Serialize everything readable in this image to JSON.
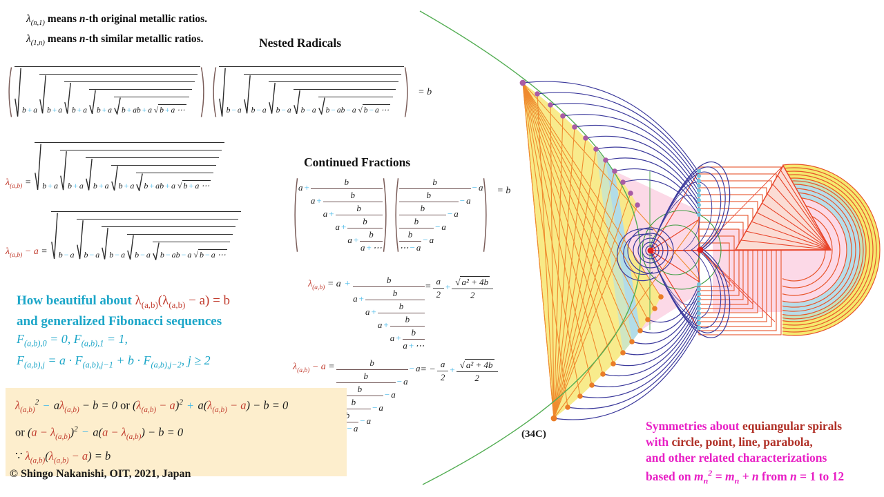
{
  "headings": {
    "nested_radicals": "Nested Radicals",
    "continued_fractions": "Continued Fractions"
  },
  "tokens": {
    "a": "a",
    "b": "b",
    "plus": "+",
    "minus": "−",
    "cdots": "⋯",
    "sqrt": "√",
    "two": "2",
    "sqrt_arg": "a² + 4b"
  },
  "colors": {
    "cyan_text": "#1ca6c8",
    "sign_blue": "#45b8e8",
    "lambda_red": "#c13b2d",
    "magenta": "#e81fc5",
    "dark_red": "#b03027",
    "box_bg": "#fdeecd",
    "green": "#54ae54",
    "indigo": "#3c3a9c",
    "orange": "#ef8a2e",
    "red": "#e8442a",
    "yellow": "#f8ea86"
  },
  "rich": {
    "note1": [
      {
        "t": "λ",
        "c": "ki"
      },
      {
        "t": "(n,1)",
        "c": "ki",
        "sub": true
      },
      {
        "t": " means ",
        "c": "kb"
      },
      {
        "t": "n",
        "c": "kbi"
      },
      {
        "t": "-th original metallic ratios.",
        "c": "kb"
      }
    ],
    "note2": [
      {
        "t": "λ",
        "c": "ki"
      },
      {
        "t": "(1,n)",
        "c": "ki",
        "sub": true
      },
      {
        "t": " means ",
        "c": "kb"
      },
      {
        "t": "n",
        "c": "kbi"
      },
      {
        "t": "-th similar metallic ratios.",
        "c": "kb"
      }
    ],
    "eq1_rhs": [
      {
        "t": "= ",
        "c": "k"
      },
      {
        "t": "b",
        "c": "ki"
      }
    ],
    "eq2_label": [
      {
        "t": "λ",
        "c": "r"
      },
      {
        "t": "(a,b)",
        "c": "r",
        "sub": true
      },
      {
        "t": " = ",
        "c": "k"
      }
    ],
    "eq3_label": [
      {
        "t": "λ",
        "c": "r"
      },
      {
        "t": "(a,b)",
        "c": "r",
        "sub": true
      },
      {
        "t": " − a ",
        "c": "r"
      },
      {
        "t": "= ",
        "c": "k"
      }
    ],
    "eq5_label": [
      {
        "t": "λ",
        "c": "r"
      },
      {
        "t": "(a,b)",
        "c": "r",
        "sub": true
      },
      {
        "t": " = ",
        "c": "k"
      },
      {
        "t": "a ",
        "c": "ki"
      },
      {
        "t": "+",
        "c": "c"
      }
    ],
    "eq5_eq": [
      {
        "t": "=  ",
        "c": "k"
      }
    ],
    "eq6_label": [
      {
        "t": "λ",
        "c": "r"
      },
      {
        "t": "(a,b)",
        "c": "r",
        "sub": true
      },
      {
        "t": " − a ",
        "c": "r"
      },
      {
        "t": "= ",
        "c": "k"
      }
    ],
    "eq6_eq": [
      {
        "t": "= −",
        "c": "k"
      }
    ],
    "cy1": [
      {
        "t": "How beautiful about ",
        "c": "ct"
      },
      {
        "t": "λ",
        "c": "r"
      },
      {
        "t": "(a,b)",
        "c": "r",
        "sub": true
      },
      {
        "t": "(",
        "c": "r"
      },
      {
        "t": "λ",
        "c": "r"
      },
      {
        "t": "(a,b)",
        "c": "r",
        "sub": true
      },
      {
        "t": " − a",
        "c": "r"
      },
      {
        "t": ") = b",
        "c": "r"
      }
    ],
    "cy2": [
      {
        "t": "and generalized Fibonacci sequences",
        "c": "ct"
      }
    ],
    "cy3": [
      {
        "t": "F",
        "c": "ci"
      },
      {
        "t": "(a,b),0",
        "c": "ci",
        "sub": true
      },
      {
        "t": " = 0,",
        "c": "ci"
      },
      {
        "t": "        ",
        "c": "ci"
      },
      {
        "t": "F",
        "c": "ci"
      },
      {
        "t": "(a,b),1",
        "c": "ci",
        "sub": true
      },
      {
        "t": " = 1,",
        "c": "ci"
      }
    ],
    "cy4": [
      {
        "t": "F",
        "c": "ci"
      },
      {
        "t": "(a,b),j",
        "c": "ci",
        "sub": true
      },
      {
        "t": " = a · F",
        "c": "ci"
      },
      {
        "t": "(a,b),j−1",
        "c": "ci",
        "sub": true
      },
      {
        "t": " + b · F",
        "c": "ci"
      },
      {
        "t": "(a,b),j−2",
        "c": "ci",
        "sub": true
      },
      {
        "t": ",       j ≥ 2",
        "c": "ci"
      }
    ],
    "box1": [
      {
        "t": "λ",
        "c": "r"
      },
      {
        "t": "(a,b)",
        "c": "r",
        "sub": true
      },
      {
        "t": "2",
        "c": "k",
        "sup": true
      },
      {
        "t": " − ",
        "c": "c"
      },
      {
        "t": "a",
        "c": "ki"
      },
      {
        "t": "λ",
        "c": "r"
      },
      {
        "t": "(a,b)",
        "c": "r",
        "sub": true
      },
      {
        "t": " − b = 0  ",
        "c": "k"
      },
      {
        "t": "or",
        "c": "ku"
      },
      {
        "t": "  (",
        "c": "k"
      },
      {
        "t": "λ",
        "c": "r"
      },
      {
        "t": "(a,b)",
        "c": "r",
        "sub": true
      },
      {
        "t": " − a",
        "c": "r"
      },
      {
        "t": ")",
        "c": "k"
      },
      {
        "t": "2",
        "c": "k",
        "sup": true
      },
      {
        "t": " + ",
        "c": "c"
      },
      {
        "t": "a(",
        "c": "k"
      },
      {
        "t": "λ",
        "c": "r"
      },
      {
        "t": "(a,b)",
        "c": "r",
        "sub": true
      },
      {
        "t": " − a",
        "c": "r"
      },
      {
        "t": ") − b = 0",
        "c": "k"
      }
    ],
    "box2": [
      {
        "t": "or",
        "c": "ku"
      },
      {
        "t": "  (",
        "c": "k"
      },
      {
        "t": "a − λ",
        "c": "r"
      },
      {
        "t": "(a,b)",
        "c": "r",
        "sub": true
      },
      {
        "t": ")",
        "c": "k"
      },
      {
        "t": "2",
        "c": "k",
        "sup": true
      },
      {
        "t": " − ",
        "c": "c"
      },
      {
        "t": "a(",
        "c": "k"
      },
      {
        "t": "a − λ",
        "c": "r"
      },
      {
        "t": "(a,b)",
        "c": "r",
        "sub": true
      },
      {
        "t": ") − b = 0",
        "c": "k"
      }
    ],
    "box3": [
      {
        "t": "∵ ",
        "c": "ku"
      },
      {
        "t": "λ",
        "c": "r"
      },
      {
        "t": "(a,b)",
        "c": "r",
        "sub": true
      },
      {
        "t": "(",
        "c": "k"
      },
      {
        "t": "λ",
        "c": "r"
      },
      {
        "t": "(a,b)",
        "c": "r",
        "sub": true
      },
      {
        "t": " − a",
        "c": "r"
      },
      {
        "t": ") = b",
        "c": "k"
      }
    ],
    "mg1": [
      {
        "t": "Symmetries about ",
        "c": "m"
      },
      {
        "t": "equiangular spirals",
        "c": "dr"
      }
    ],
    "mg2": [
      {
        "t": "with ",
        "c": "m"
      },
      {
        "t": "circle, point, line, parabola,",
        "c": "dr"
      }
    ],
    "mg3": [
      {
        "t": "and other related characterizations",
        "c": "m"
      }
    ],
    "mg4": [
      {
        "t": "based on ",
        "c": "m"
      },
      {
        "t": "m",
        "c": "mi"
      },
      {
        "t": "n",
        "c": "mi",
        "sub": true
      },
      {
        "t": "2",
        "c": "mi",
        "sup": true
      },
      {
        "t": " = m",
        "c": "mi"
      },
      {
        "t": "n",
        "c": "mi",
        "sub": true
      },
      {
        "t": " + n",
        "c": "mi"
      },
      {
        "t": " from ",
        "c": "m"
      },
      {
        "t": "n",
        "c": "mi"
      },
      {
        "t": " = 1 to 12",
        "c": "m"
      }
    ],
    "fig_code": [
      {
        "t": "(34C)",
        "c": "kb"
      }
    ],
    "copyright": [
      {
        "t": "© Shingo  Nakanishi, OIT, 2021, Japan",
        "c": "kb"
      }
    ]
  }
}
